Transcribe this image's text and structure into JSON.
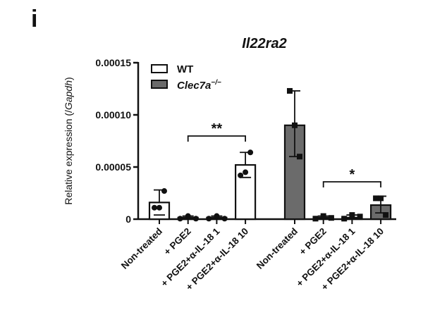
{
  "panel": {
    "label": "i"
  },
  "chart_data": {
    "type": "bar",
    "title": "Il22ra2",
    "xlabel": "",
    "ylabel": "Relative expression (/Gapdh)",
    "ylabel_parts": {
      "plain": "Relative expression (/",
      "italic": "Gapdh",
      "end": ")"
    },
    "ylim": [
      0,
      0.00015
    ],
    "yticks": [
      0,
      5e-05,
      0.0001,
      0.00015
    ],
    "ytick_labels": [
      "0",
      "0.00005",
      "0.00010",
      "0.00015"
    ],
    "grid": false,
    "legend_position": "top-left inside",
    "categories": [
      "Non-treated",
      "+ PGE2",
      "+ PGE2+α-IL-18 1",
      "+ PGE2+α-IL-18 10"
    ],
    "series": [
      {
        "name": "WT",
        "fill": "#ffffff",
        "marker": "circle",
        "values": [
          1.6e-05,
          1.5e-06,
          1.5e-06,
          5.2e-05
        ],
        "sd_upper": [
          2.8e-05,
          3e-06,
          3e-06,
          6.4e-05
        ],
        "points": [
          [
            1.1e-05,
            1.1e-05,
            2.7e-05
          ],
          [
            5e-07,
            3e-06,
            5e-07
          ],
          [
            5e-07,
            3e-06,
            5e-07
          ],
          [
            4.2e-05,
            4.5e-05,
            6.4e-05
          ]
        ]
      },
      {
        "name": "Clec7a−/−",
        "name_base": "Clec7a",
        "name_sup": "−/−",
        "fill": "#6b6b6b",
        "marker": "square",
        "values": [
          9e-05,
          1.5e-06,
          1.5e-06,
          1.35e-05
        ],
        "sd_upper": [
          0.000123,
          3e-06,
          4e-06,
          2.2e-05
        ],
        "sd_lower": [
          6e-05,
          5e-07,
          5e-07,
          6e-06
        ],
        "points": [
          [
            0.000123,
            9e-05,
            6e-05
          ],
          [
            5e-07,
            3e-06,
            1.2e-06
          ],
          [
            5e-07,
            4e-06,
            2.5e-06
          ],
          [
            2e-05,
            2e-05,
            4e-06
          ]
        ]
      }
    ],
    "annotations": [
      {
        "text": "**",
        "group": "WT",
        "from": "+ PGE2",
        "to": "+ PGE2+α-IL-18 10"
      },
      {
        "text": "*",
        "group": "Clec7a−/−",
        "from": "+ PGE2",
        "to": "+ PGE2+α-IL-18 10"
      }
    ]
  }
}
